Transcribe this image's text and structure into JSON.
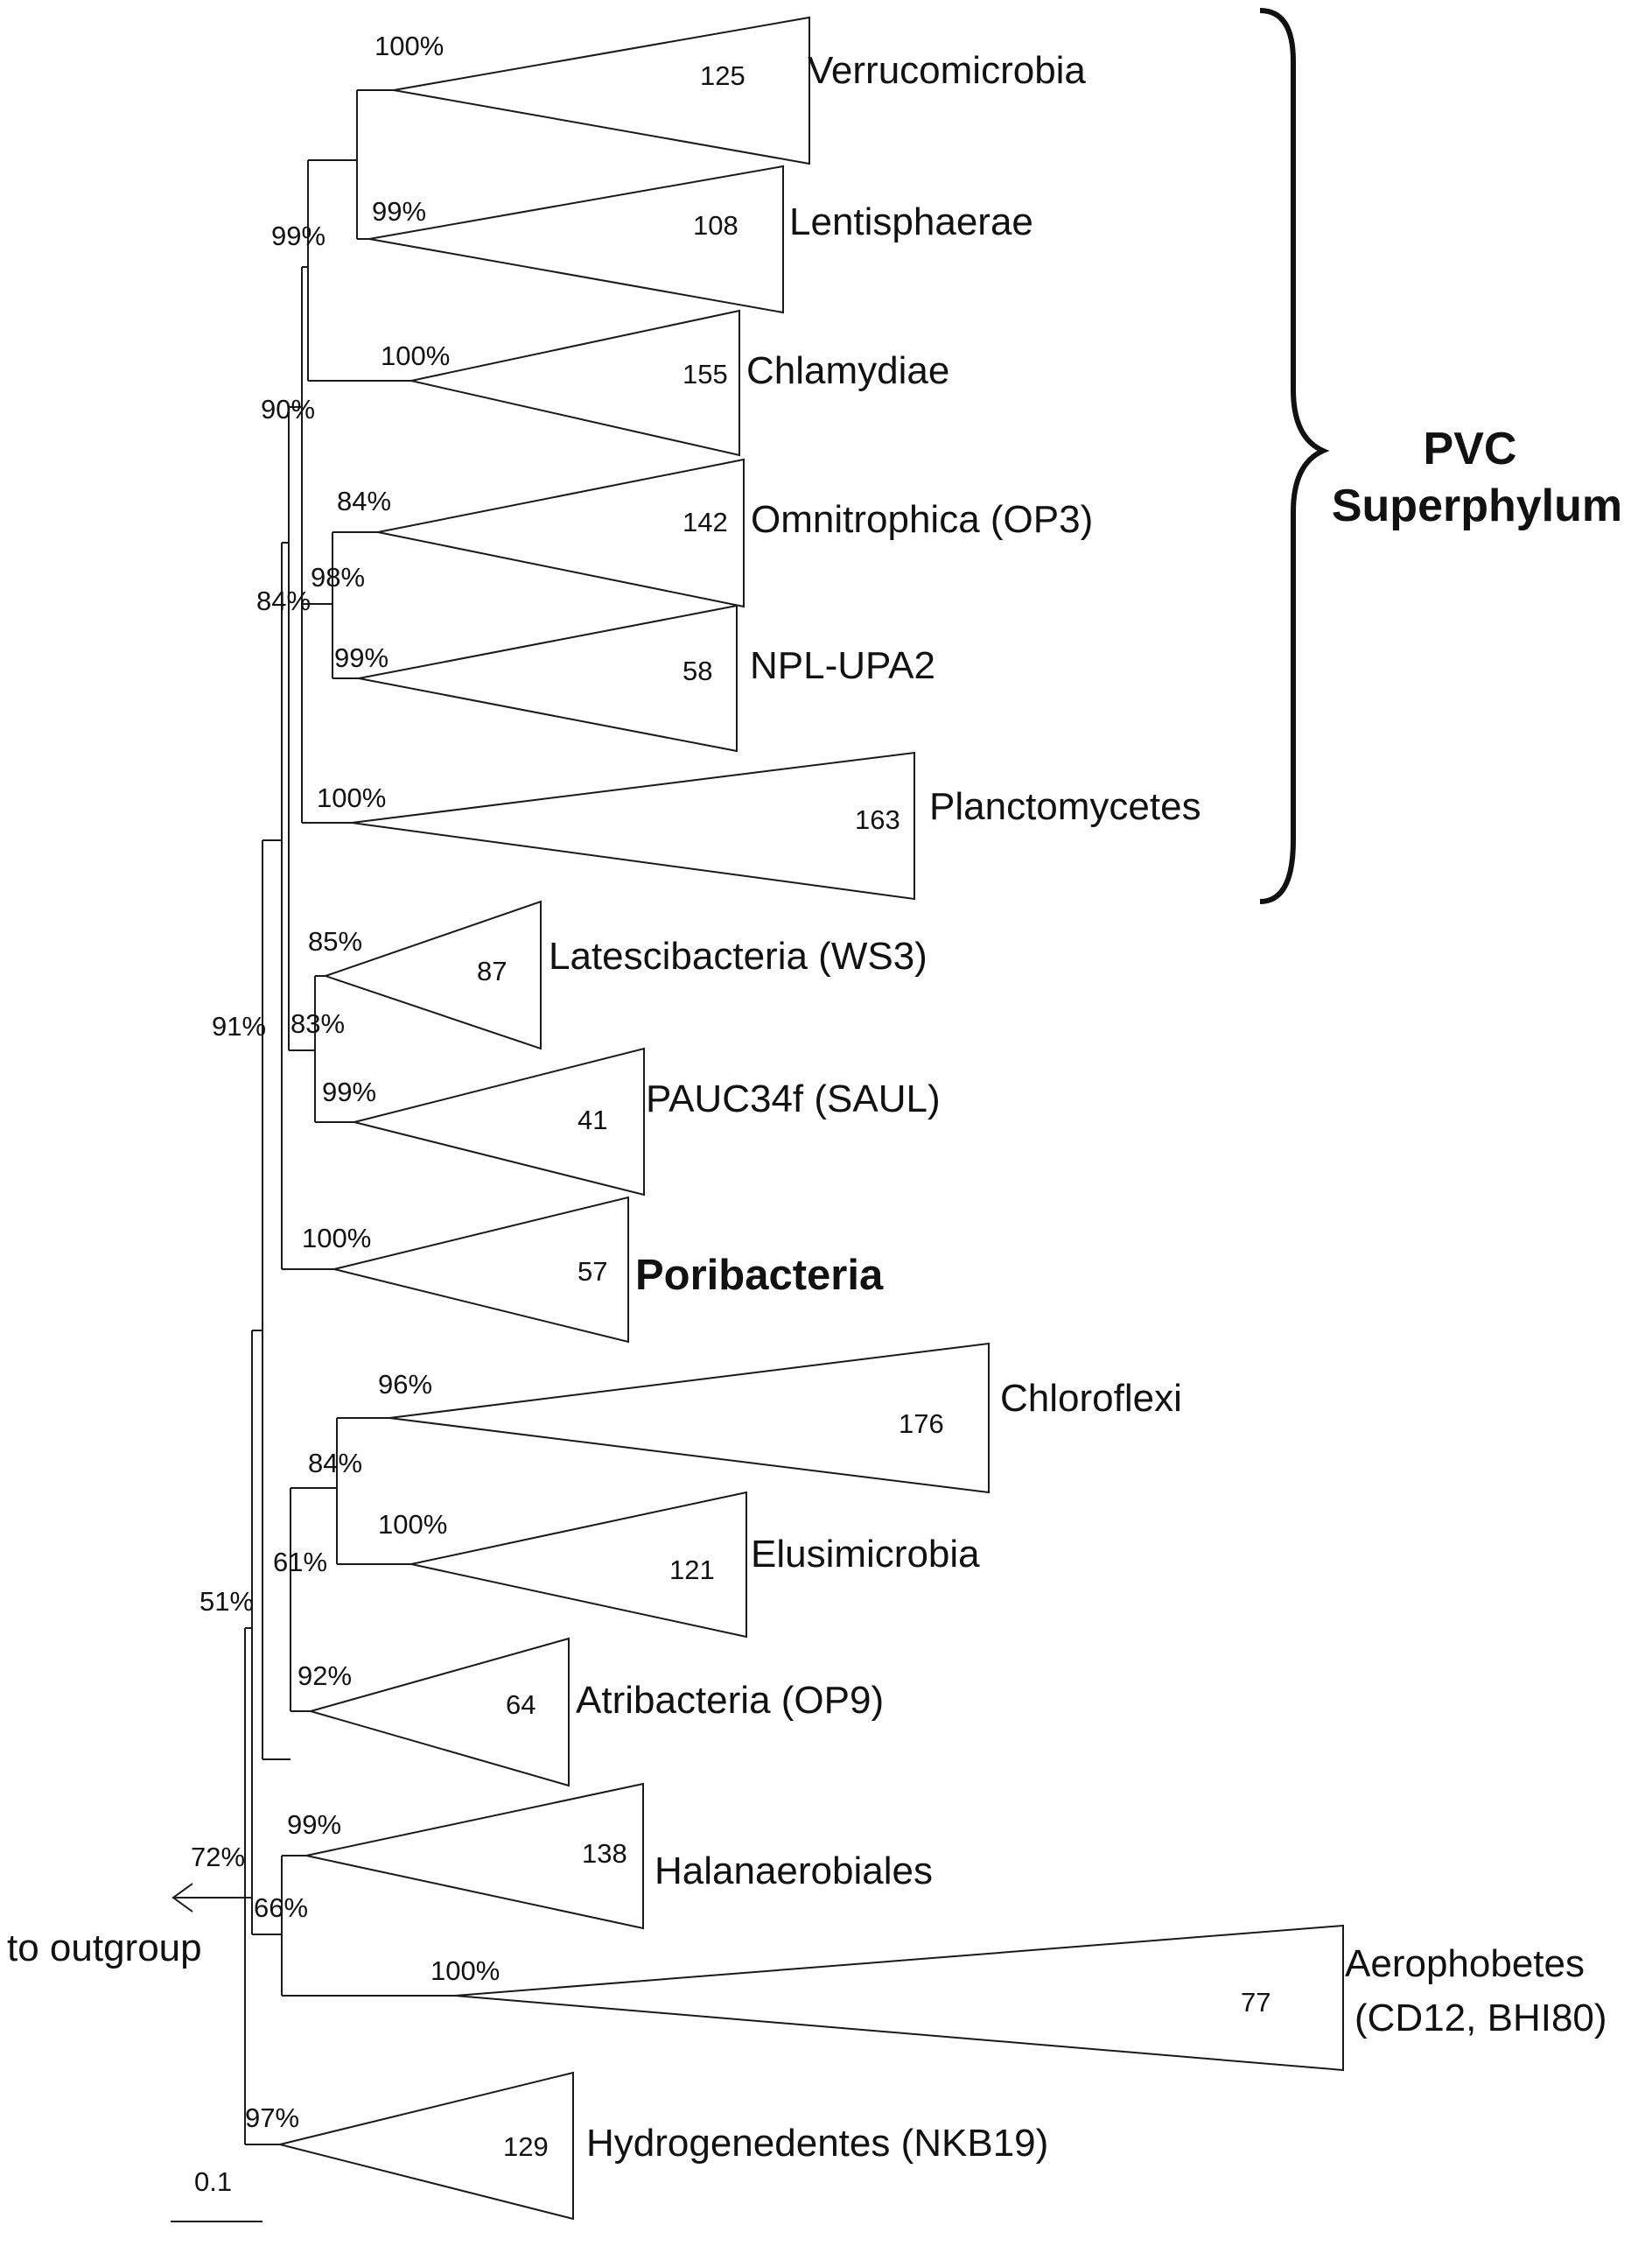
{
  "taxa": [
    {
      "name": "Verrucomicrobia",
      "count": "125",
      "support": "100%"
    },
    {
      "name": "Lentisphaerae",
      "count": "108",
      "support": "99%"
    },
    {
      "name": "Chlamydiae",
      "count": "155",
      "support": "100%"
    },
    {
      "name": "Omnitrophica (OP3)",
      "count": "142",
      "support": "84%"
    },
    {
      "name": "NPL-UPA2",
      "count": "58",
      "support": "99%"
    },
    {
      "name": "Planctomycetes",
      "count": "163",
      "support": "100%"
    },
    {
      "name": "Latescibacteria (WS3)",
      "count": "87",
      "support": "85%"
    },
    {
      "name": "PAUC34f (SAUL)",
      "count": "41",
      "support": "99%"
    },
    {
      "name": "Poribacteria",
      "count": "57",
      "support": "100%"
    },
    {
      "name": "Chloroflexi",
      "count": "176",
      "support": "96%"
    },
    {
      "name": "Elusimicrobia",
      "count": "121",
      "support": "100%"
    },
    {
      "name": "Atribacteria (OP9)",
      "count": "64",
      "support": "92%"
    },
    {
      "name": "Halanaerobiales",
      "count": "138",
      "support": "99%"
    },
    {
      "name": "Aerophobetes",
      "name_line2": "(CD12, BHI80)",
      "count": "77",
      "support": "100%"
    },
    {
      "name": "Hydrogenedentes (NKB19)",
      "count": "129",
      "support": "97%"
    }
  ],
  "internal_support": {
    "verruco_lenti": "99%",
    "vlc": "90%",
    "omni_npl": "98%",
    "pvc_core": "84%",
    "latesci_pauc": "83%",
    "pvc_plus": "91%",
    "chloro_elusi": "84%",
    "chloro_atri": "61%",
    "big_clade": "51%",
    "root_node": "72%",
    "halan_aero": "66%"
  },
  "bracket": {
    "line1": "PVC",
    "line2": "Superphylum"
  },
  "outgroup_label": "to outgroup",
  "scale_bar": {
    "label": "0.1",
    "value": 0.1
  },
  "colors": {
    "line": "#1a1a1a",
    "text": "#111111",
    "fill": "#ffffff"
  }
}
